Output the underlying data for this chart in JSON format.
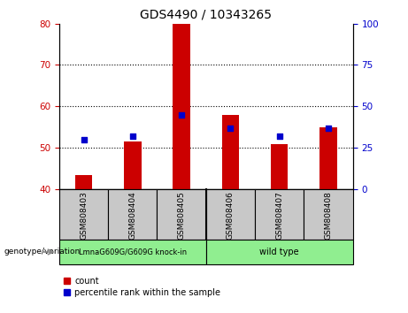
{
  "title": "GDS4490 / 10343265",
  "samples": [
    "GSM808403",
    "GSM808404",
    "GSM808405",
    "GSM808406",
    "GSM808407",
    "GSM808408"
  ],
  "count_values": [
    43.5,
    51.5,
    80.0,
    58.0,
    51.0,
    55.0
  ],
  "percentile_right_values": [
    30,
    32,
    45,
    37,
    32,
    37
  ],
  "ylim_left": [
    40,
    80
  ],
  "ylim_right": [
    0,
    100
  ],
  "yticks_left": [
    40,
    50,
    60,
    70,
    80
  ],
  "yticks_right": [
    0,
    25,
    50,
    75,
    100
  ],
  "bar_color": "#cc0000",
  "dot_color": "#0000cc",
  "bar_bottom": 40,
  "dot_size": 20,
  "bar_width": 0.35,
  "groups": [
    {
      "label": "LmnaG609G/G609G knock-in",
      "indices": [
        0,
        1,
        2
      ],
      "color": "#90ee90"
    },
    {
      "label": "wild type",
      "indices": [
        3,
        4,
        5
      ],
      "color": "#90ee90"
    }
  ],
  "group_bg_color": "#c8c8c8",
  "legend_count_label": "count",
  "legend_percentile_label": "percentile rank within the sample",
  "genotype_label": "genotype/variation",
  "left_tick_color": "#cc0000",
  "right_tick_color": "#0000cc",
  "title_fontsize": 10,
  "tick_fontsize": 7.5,
  "label_fontsize": 6.5,
  "group_fontsize": 7,
  "legend_fontsize": 7
}
